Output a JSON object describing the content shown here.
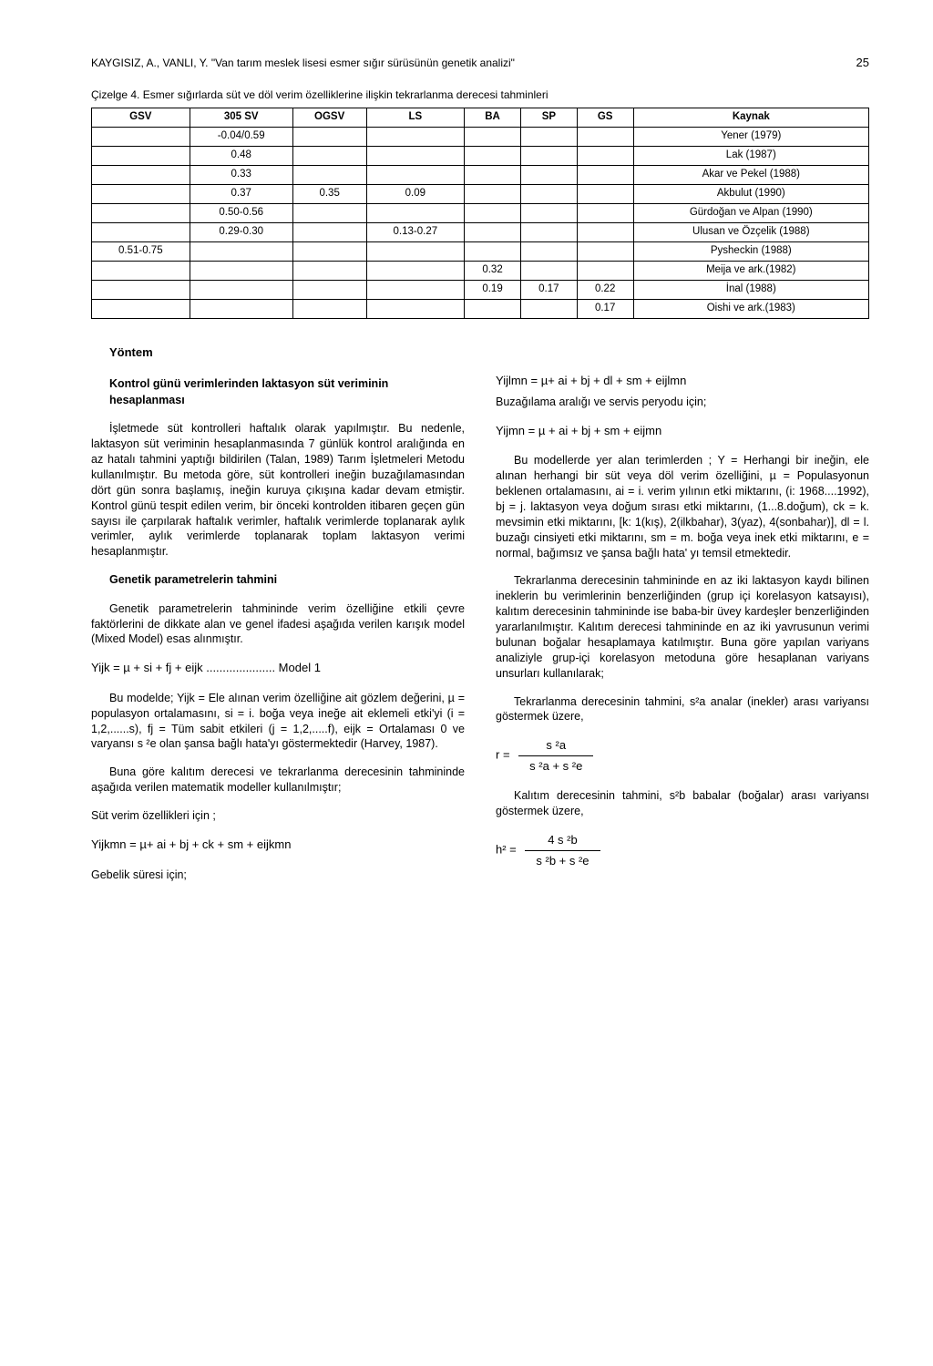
{
  "header": {
    "citation": "KAYGISIZ, A., VANLI, Y. \"Van tarım meslek lisesi esmer sığır sürüsünün genetik analizi\"",
    "pagenum": "25"
  },
  "table": {
    "caption": "Çizelge 4. Esmer sığırlarda süt ve döl verim özelliklerine ilişkin tekrarlanma derecesi tahminleri",
    "columns": [
      "GSV",
      "305 SV",
      "OGSV",
      "LS",
      "BA",
      "SP",
      "GS",
      "Kaynak"
    ],
    "rows": [
      [
        "",
        "-0.04/0.59",
        "",
        "",
        "",
        "",
        "",
        "Yener (1979)"
      ],
      [
        "",
        "0.48",
        "",
        "",
        "",
        "",
        "",
        "Lak (1987)"
      ],
      [
        "",
        "0.33",
        "",
        "",
        "",
        "",
        "",
        "Akar ve Pekel (1988)"
      ],
      [
        "",
        "0.37",
        "0.35",
        "0.09",
        "",
        "",
        "",
        "Akbulut (1990)"
      ],
      [
        "",
        "0.50-0.56",
        "",
        "",
        "",
        "",
        "",
        "Gürdoğan ve Alpan (1990)"
      ],
      [
        "",
        "0.29-0.30",
        "",
        "0.13-0.27",
        "",
        "",
        "",
        "Ulusan ve Özçelik (1988)"
      ],
      [
        "0.51-0.75",
        "",
        "",
        "",
        "",
        "",
        "",
        "Pysheckin (1988)"
      ],
      [
        "",
        "",
        "",
        "",
        "0.32",
        "",
        "",
        "Meija ve ark.(1982)"
      ],
      [
        "",
        "",
        "",
        "",
        "0.19",
        "0.17",
        "0.22",
        "İnal (1988)"
      ],
      [
        "",
        "",
        "",
        "",
        "",
        "",
        "0.17",
        "Oishi ve ark.(1983)"
      ]
    ]
  },
  "body": {
    "yontem": "Yöntem",
    "sub1_title": "Kontrol günü verimlerinden laktasyon süt veriminin hesaplanması",
    "p1": "İşletmede süt kontrolleri haftalık olarak yapılmıştır. Bu nedenle, laktasyon süt veriminin hesaplanmasında 7 günlük kontrol aralığında en az hatalı tahmini yaptığı bildirilen (Talan, 1989) Tarım İşletmeleri Metodu kullanılmıştır. Bu metoda göre, süt kontrolleri ineğin buzağılamasından dört gün sonra başlamış, ineğin kuruya çıkışına kadar devam etmiştir. Kontrol günü tespit edilen verim, bir önceki kontrolden itibaren geçen gün sayısı ile çarpılarak haftalık verimler, haftalık verimlerde toplanarak aylık verimler, aylık verimlerde toplanarak toplam laktasyon verimi hesaplanmıştır.",
    "sub2_title": "Genetik parametrelerin tahmini",
    "p2": "Genetik parametrelerin tahmininde verim özelliğine etkili çevre faktörlerini de dikkate alan ve genel ifadesi aşağıda verilen karışık model (Mixed Model) esas alınmıştır.",
    "model1": "Yijk = µ + si + fj + eijk ..................... Model 1",
    "p3": "Bu modelde; Yijk = Ele alınan verim özelliğine ait gözlem değerini, µ = populasyon ortalamasını, si = i. boğa veya ineğe ait eklemeli etki'yi (i = 1,2,......s), fj = Tüm sabit etkileri (j = 1,2,.....f), eijk = Ortalaması 0 ve varyansı s ²e olan şansa bağlı hata'yı göstermektedir (Harvey, 1987).",
    "p4": "Buna göre kalıtım derecesi ve tekrarlanma derecesinin tahmininde aşağıda verilen matematik modeller kullanılmıştır;",
    "p5": "Süt verim özellikleri için ;",
    "f1": "Yijkmn = µ+ ai + bj  + ck + sm + eijkmn",
    "p6": "Gebelik süresi için;",
    "f2": "Yijlmn  = µ+ ai + bj  + dl + sm + eijlmn",
    "p7": "Buzağılama aralığı ve servis peryodu için;",
    "f3": "Yijmn  = µ + ai + bj  +  sm + eijmn",
    "p8": "Bu modellerde yer alan terimlerden ; Y = Herhangi bir ineğin, ele alınan herhangi bir süt veya döl verim özelliğini, µ = Populasyonun beklenen ortalamasını, ai = i. verim yılının etki miktarını, (i: 1968....1992), bj = j. laktasyon veya doğum sırası etki miktarını, (1...8.doğum), ck = k. mevsimin etki miktarını, [k: 1(kış), 2(ilkbahar), 3(yaz), 4(sonbahar)], dl = l. buzağı cinsiyeti etki miktarını, sm = m. boğa veya inek etki miktarını, e = normal, bağımsız ve şansa bağlı hata' yı temsil etmektedir.",
    "p9": "Tekrarlanma derecesinin tahmininde en az iki laktasyon kaydı bilinen ineklerin bu verimlerinin benzerliğinden (grup içi korelasyon katsayısı), kalıtım derecesinin tahmininde ise baba-bir üvey kardeşler benzerliğinden yararlanılmıştır. Kalıtım derecesi tahmininde en az iki yavrusunun verimi bulunan boğalar hesaplamaya katılmıştır. Buna göre yapılan variyans analiziyle grup-içi korelasyon metoduna göre hesaplanan variyans unsurları kullanılarak;",
    "p10": "Tekrarlanma derecesinin tahmini, s²a analar (inekler) arası variyansı göstermek üzere,",
    "frac1_lhs": "r = ",
    "frac1_top": "s ²a",
    "frac1_bot": "s ²a + s ²e",
    "p11": "Kalıtım derecesinin tahmini, s²b babalar (boğalar) arası variyansı göstermek üzere,",
    "frac2_lhs": "h² = ",
    "frac2_top": "4 s ²b",
    "frac2_bot": "s ²b + s ²e"
  }
}
